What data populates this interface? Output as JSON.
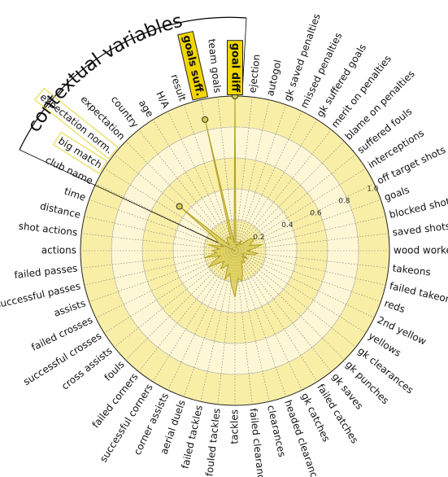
{
  "chart_data": {
    "type": "radar",
    "annotation": "contextual variables",
    "categories": [
      "goal diff",
      "ejection",
      "autogol",
      "gk saved penalties",
      "missed penalties",
      "gk suffered goals",
      "merit on penalties",
      "blame on penalties",
      "suffered fouls",
      "interceptions",
      "off target shots",
      "goals",
      "blocked shots",
      "saved shots",
      "wood worker",
      "takeons",
      "failed takeons",
      "reds",
      "2nd yellow",
      "yellows",
      "gk clearances",
      "gk punches",
      "gk saves",
      "failed catches",
      "gk catches",
      "headed clearances",
      "clearances",
      "failed clearances",
      "tackles",
      "fouled tackles",
      "failed tackles",
      "aerial duels",
      "corner assists",
      "successful corners",
      "failed corners",
      "fouls",
      "cross assists",
      "successful crosses",
      "failed crosses",
      "assists",
      "successful passes",
      "failed passes",
      "actions",
      "shot actions",
      "distance",
      "time",
      "club name",
      "big match",
      "expectation norm.",
      "expectation",
      "country",
      "age",
      "H/A",
      "result",
      "goals suff.",
      "team goals"
    ],
    "values": [
      1.0,
      0.05,
      0.05,
      0.03,
      0.05,
      0.08,
      0.05,
      0.06,
      0.12,
      0.15,
      0.12,
      0.1,
      0.18,
      0.12,
      0.08,
      0.15,
      0.12,
      0.06,
      0.05,
      0.1,
      0.06,
      0.08,
      0.1,
      0.08,
      0.1,
      0.15,
      0.2,
      0.18,
      0.3,
      0.22,
      0.15,
      0.2,
      0.1,
      0.12,
      0.15,
      0.1,
      0.12,
      0.2,
      0.15,
      0.1,
      0.2,
      0.12,
      0.15,
      0.1,
      0.18,
      0.08,
      0.12,
      0.15,
      0.46,
      0.05,
      0.08,
      0.1,
      0.1,
      0.08,
      0.87,
      0.05
    ],
    "color": "#d8ca4c",
    "rlim": [
      0,
      1
    ],
    "rticks": [
      0.2,
      0.4,
      0.6,
      0.8,
      {
        "value": 1.0,
        "label": "1.0"
      }
    ],
    "markers": [
      0,
      48,
      54
    ],
    "highlighted": [
      0,
      54
    ],
    "outlined": [
      47,
      48
    ]
  }
}
